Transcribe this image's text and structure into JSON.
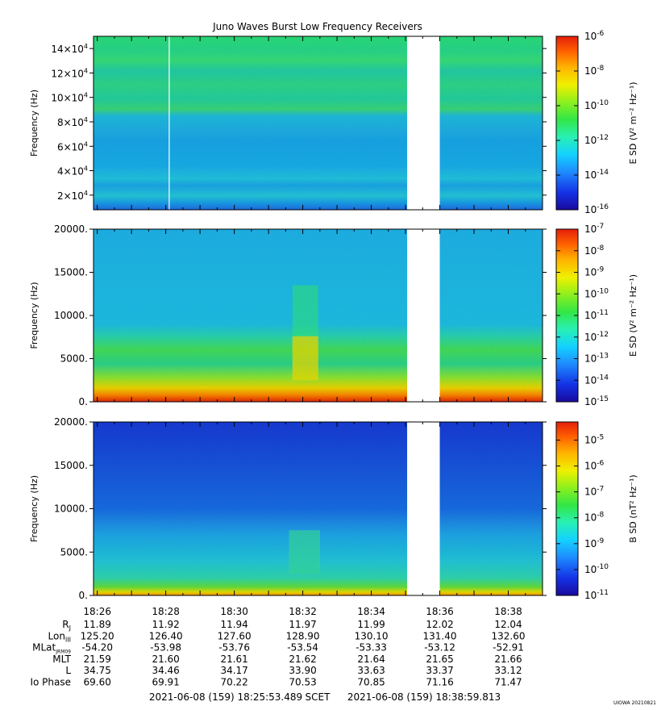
{
  "title": "Juno Waves Burst Low Frequency Receivers",
  "chart_data": [
    {
      "type": "heatmap",
      "panel": "E field, burst low band",
      "ylabel": "Frequency (Hz)",
      "ylim": [
        8000,
        150000
      ],
      "y_ticks": [
        {
          "value": 20000,
          "mant": "2",
          "exp": "4"
        },
        {
          "value": 40000,
          "mant": "4",
          "exp": "4"
        },
        {
          "value": 60000,
          "mant": "6",
          "exp": "4"
        },
        {
          "value": 80000,
          "mant": "8",
          "exp": "4"
        },
        {
          "value": 100000,
          "mant": "10",
          "exp": "4"
        },
        {
          "value": 120000,
          "mant": "12",
          "exp": "4"
        },
        {
          "value": 140000,
          "mant": "14",
          "exp": "4"
        }
      ],
      "colorbar": {
        "label": "E SD (V² m⁻² Hz⁻¹)",
        "scale": "log",
        "range_exp": [
          -16,
          -6
        ],
        "ticks_exp": [
          -16,
          -14,
          -12,
          -10,
          -8,
          -6
        ]
      },
      "data_gap": [
        "18:35",
        "18:36"
      ]
    },
    {
      "type": "heatmap",
      "panel": "E field, low frequency",
      "ylabel": "Frequency (Hz)",
      "ylim": [
        0,
        20000
      ],
      "y_ticks": [
        {
          "value": 0,
          "label": "0."
        },
        {
          "value": 5000,
          "label": "5000."
        },
        {
          "value": 10000,
          "label": "10000."
        },
        {
          "value": 15000,
          "label": "15000."
        },
        {
          "value": 20000,
          "label": "20000."
        }
      ],
      "colorbar": {
        "label": "E SD (V² m⁻² Hz⁻¹)",
        "scale": "log",
        "range_exp": [
          -15,
          -7
        ],
        "ticks_exp": [
          -15,
          -14,
          -13,
          -12,
          -11,
          -10,
          -9,
          -8,
          -7
        ]
      },
      "data_gap": [
        "18:35",
        "18:36"
      ]
    },
    {
      "type": "heatmap",
      "panel": "B field, low frequency",
      "ylabel": "Frequency (Hz)",
      "ylim": [
        0,
        20000
      ],
      "y_ticks": [
        {
          "value": 0,
          "label": "0."
        },
        {
          "value": 5000,
          "label": "5000."
        },
        {
          "value": 10000,
          "label": "10000."
        },
        {
          "value": 15000,
          "label": "15000."
        },
        {
          "value": 20000,
          "label": "20000."
        }
      ],
      "colorbar": {
        "label": "B SD (nT² Hz⁻¹)",
        "scale": "log",
        "range_exp": [
          -11,
          -4.3
        ],
        "ticks_exp": [
          -11,
          -10,
          -9,
          -8,
          -7,
          -6,
          -5
        ]
      },
      "data_gap": [
        "18:35",
        "18:36"
      ]
    }
  ],
  "x_axis": {
    "times": [
      "18:26",
      "18:28",
      "18:30",
      "18:32",
      "18:34",
      "18:36",
      "18:38"
    ],
    "range_minutes": [
      25.89,
      39.0
    ]
  },
  "ephemeris": [
    {
      "label": "R",
      "sub": "J",
      "values": [
        "11.89",
        "11.92",
        "11.94",
        "11.97",
        "11.99",
        "12.02",
        "12.04"
      ]
    },
    {
      "label": "Lon",
      "sub": "III",
      "values": [
        "125.20",
        "126.40",
        "127.60",
        "128.90",
        "130.10",
        "131.40",
        "132.60"
      ]
    },
    {
      "label": "MLat",
      "sub": "JRM09",
      "values": [
        "-54.20",
        "-53.98",
        "-53.76",
        "-53.54",
        "-53.33",
        "-53.12",
        "-52.91"
      ]
    },
    {
      "label": "MLT",
      "sub": "",
      "values": [
        "21.59",
        "21.60",
        "21.61",
        "21.62",
        "21.64",
        "21.65",
        "21.66"
      ]
    },
    {
      "label": "L",
      "sub": "",
      "values": [
        "34.75",
        "34.46",
        "34.17",
        "33.90",
        "33.63",
        "33.37",
        "33.12"
      ]
    },
    {
      "label": "Io Phase",
      "sub": "",
      "values": [
        "69.60",
        "69.91",
        "70.22",
        "70.53",
        "70.85",
        "71.16",
        "71.47"
      ]
    }
  ],
  "footer": {
    "start": "2021-06-08 (159) 18:25:53.489",
    "scet": "SCET",
    "end": "2021-06-08 (159) 18:38:59.813",
    "credit": "UIOWA 20210821"
  }
}
